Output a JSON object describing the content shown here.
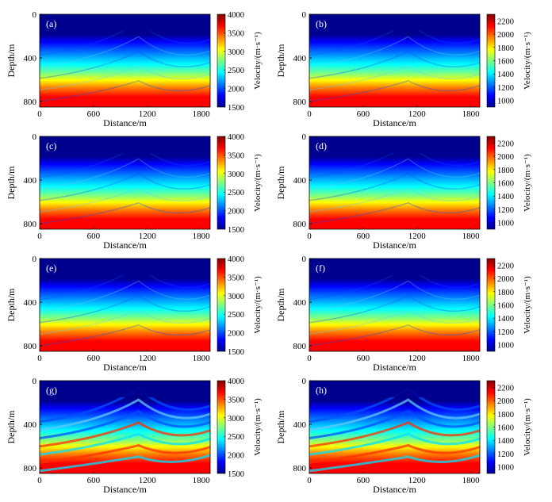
{
  "figure": {
    "xlabel": "Distance/m",
    "ylabel": "Depth/m",
    "xticks": [
      "0",
      "600",
      "1200",
      "1800"
    ],
    "yticks": [
      "0",
      "400",
      "800"
    ],
    "colorbar_label": "Velocity/(m·s⁻¹)"
  },
  "colors": {
    "colormap": [
      "#00008f",
      "#0000ff",
      "#0080ff",
      "#00ffff",
      "#80ff80",
      "#ffff00",
      "#ff8000",
      "#ff0000",
      "#800000"
    ]
  },
  "chart_data": [
    {
      "type": "heatmap",
      "label": "(a)",
      "xlabel": "Distance/m",
      "ylabel": "Depth/m",
      "xlim": [
        0,
        1900
      ],
      "ylim": [
        850,
        0
      ],
      "xticks": [
        0,
        600,
        1200,
        1800
      ],
      "yticks": [
        0,
        400,
        800
      ],
      "colorbar": {
        "label": "Velocity/(m·s⁻¹)",
        "range": [
          1500,
          4000
        ],
        "ticks": [
          1500,
          2000,
          2500,
          3000,
          3500,
          4000
        ]
      }
    },
    {
      "type": "heatmap",
      "label": "(b)",
      "xlabel": "Distance/m",
      "ylabel": "Depth/m",
      "xlim": [
        0,
        1900
      ],
      "ylim": [
        850,
        0
      ],
      "xticks": [
        0,
        600,
        1200,
        1800
      ],
      "yticks": [
        0,
        400,
        800
      ],
      "colorbar": {
        "label": "Velocity/(m·s⁻¹)",
        "range": [
          900,
          2300
        ],
        "ticks": [
          1000,
          1200,
          1400,
          1600,
          1800,
          2000,
          2200
        ]
      }
    },
    {
      "type": "heatmap",
      "label": "(c)",
      "xlabel": "Distance/m",
      "ylabel": "Depth/m",
      "xlim": [
        0,
        1900
      ],
      "ylim": [
        850,
        0
      ],
      "xticks": [
        0,
        600,
        1200,
        1800
      ],
      "yticks": [
        0,
        400,
        800
      ],
      "colorbar": {
        "label": "Velocity/(m·s⁻¹)",
        "range": [
          1500,
          4000
        ],
        "ticks": [
          1500,
          2000,
          2500,
          3000,
          3500,
          4000
        ]
      }
    },
    {
      "type": "heatmap",
      "label": "(d)",
      "xlabel": "Distance/m",
      "ylabel": "Depth/m",
      "xlim": [
        0,
        1900
      ],
      "ylim": [
        850,
        0
      ],
      "xticks": [
        0,
        600,
        1200,
        1800
      ],
      "yticks": [
        0,
        400,
        800
      ],
      "colorbar": {
        "label": "Velocity/(m·s⁻¹)",
        "range": [
          900,
          2300
        ],
        "ticks": [
          1000,
          1200,
          1400,
          1600,
          1800,
          2000,
          2200
        ]
      }
    },
    {
      "type": "heatmap",
      "label": "(e)",
      "xlabel": "Distance/m",
      "ylabel": "Depth/m",
      "xlim": [
        0,
        1900
      ],
      "ylim": [
        850,
        0
      ],
      "xticks": [
        0,
        600,
        1200,
        1800
      ],
      "yticks": [
        0,
        400,
        800
      ],
      "colorbar": {
        "label": "Velocity/(m·s⁻¹)",
        "range": [
          1500,
          4000
        ],
        "ticks": [
          1500,
          2000,
          2500,
          3000,
          3500,
          4000
        ]
      }
    },
    {
      "type": "heatmap",
      "label": "(f)",
      "xlabel": "Distance/m",
      "ylabel": "Depth/m",
      "xlim": [
        0,
        1900
      ],
      "ylim": [
        850,
        0
      ],
      "xticks": [
        0,
        600,
        1200,
        1800
      ],
      "yticks": [
        0,
        400,
        800
      ],
      "colorbar": {
        "label": "Velocity/(m·s⁻¹)",
        "range": [
          900,
          2300
        ],
        "ticks": [
          1000,
          1200,
          1400,
          1600,
          1800,
          2000,
          2200
        ]
      }
    },
    {
      "type": "heatmap",
      "label": "(g)",
      "xlabel": "Distance/m",
      "ylabel": "Depth/m",
      "xlim": [
        0,
        1900
      ],
      "ylim": [
        850,
        0
      ],
      "xticks": [
        0,
        600,
        1200,
        1800
      ],
      "yticks": [
        0,
        400,
        800
      ],
      "colorbar": {
        "label": "Velocity/(m·s⁻¹)",
        "range": [
          1500,
          4000
        ],
        "ticks": [
          1500,
          2000,
          2500,
          3000,
          3500,
          4000
        ]
      }
    },
    {
      "type": "heatmap",
      "label": "(h)",
      "xlabel": "Distance/m",
      "ylabel": "Depth/m",
      "xlim": [
        0,
        1900
      ],
      "ylim": [
        850,
        0
      ],
      "xticks": [
        0,
        600,
        1200,
        1800
      ],
      "yticks": [
        0,
        400,
        800
      ],
      "colorbar": {
        "label": "Velocity/(m·s⁻¹)",
        "range": [
          900,
          2300
        ],
        "ticks": [
          1000,
          1200,
          1400,
          1600,
          1800,
          2000,
          2200
        ]
      }
    }
  ]
}
